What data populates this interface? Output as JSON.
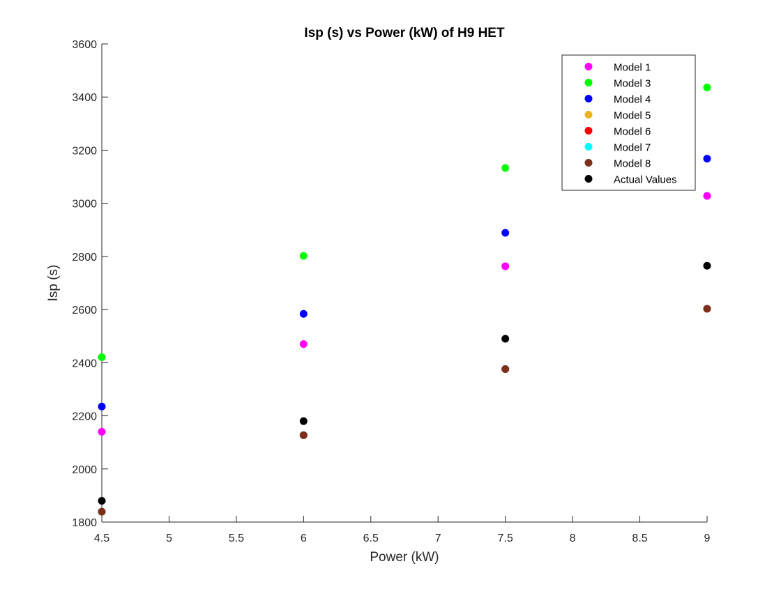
{
  "chart_data": {
    "type": "scatter",
    "title": "Isp (s) vs Power (kW) of H9 HET",
    "xlabel": "Power (kW)",
    "ylabel": "Isp (s)",
    "xlim": [
      4.5,
      9
    ],
    "ylim": [
      1800,
      3600
    ],
    "xticks": [
      "4.5",
      "5",
      "5.5",
      "6",
      "6.5",
      "7",
      "7.5",
      "8",
      "8.5",
      "9"
    ],
    "yticks": [
      "1800",
      "2000",
      "2200",
      "2400",
      "2600",
      "2800",
      "3000",
      "3200",
      "3400",
      "3600"
    ],
    "grid": false,
    "legend_position": "top-right",
    "x": [
      4.5,
      6,
      7.5,
      9
    ],
    "series": [
      {
        "name": "Model 1",
        "color": "#ff00ff",
        "values": [
          2140,
          2470,
          2763,
          3028
        ]
      },
      {
        "name": "Model 3",
        "color": "#00ff00",
        "values": [
          2421,
          2802,
          3133,
          3436
        ]
      },
      {
        "name": "Model 4",
        "color": "#0000ff",
        "values": [
          2235,
          2584,
          2889,
          3168
        ]
      },
      {
        "name": "Model 5",
        "color": "#edb120",
        "values": [
          1839,
          2127,
          2376,
          2603
        ]
      },
      {
        "name": "Model 6",
        "color": "#ff0000",
        "values": [
          1839,
          2127,
          2376,
          2603
        ]
      },
      {
        "name": "Model 7",
        "color": "#00ffff",
        "values": [
          1839,
          2127,
          2376,
          2603
        ]
      },
      {
        "name": "Model 8",
        "color": "#7e2f1a",
        "values": [
          1839,
          2127,
          2376,
          2603
        ]
      },
      {
        "name": "Actual Values",
        "color": "#000000",
        "values": [
          1880,
          2180,
          2490,
          2765
        ]
      }
    ]
  }
}
